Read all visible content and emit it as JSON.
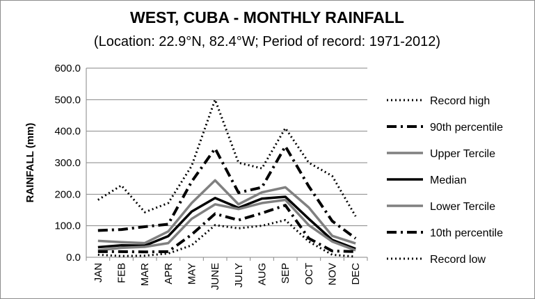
{
  "chart_data": {
    "type": "line",
    "title": "WEST, CUBA - MONTHLY RAINFALL",
    "subtitle": "(Location: 22.9°N, 82.4°W; Period of record: 1971-2012)",
    "xlabel": "",
    "ylabel": "RAINFALL (mm)",
    "ylim": [
      0,
      600
    ],
    "yticks": [
      "0.0",
      "100.0",
      "200.0",
      "300.0",
      "400.0",
      "500.0",
      "600.0"
    ],
    "categories": [
      "JAN",
      "FEB",
      "MAR",
      "APR",
      "MAY",
      "JUNE",
      "JULY",
      "AUG",
      "SEP",
      "OCT",
      "NOV",
      "DEC"
    ],
    "grid": true,
    "legend_position": "right",
    "series": [
      {
        "name": "Record high",
        "color": "#000000",
        "style": "dotted",
        "width": 3,
        "values": [
          182,
          228,
          143,
          172,
          290,
          500,
          300,
          282,
          410,
          300,
          258,
          130
        ]
      },
      {
        "name": "90th percentile",
        "color": "#000000",
        "style": "dashdot",
        "width": 4,
        "values": [
          85,
          88,
          97,
          105,
          240,
          345,
          205,
          222,
          352,
          225,
          115,
          60
        ]
      },
      {
        "name": "Upper Tercile",
        "color": "#808080",
        "style": "solid",
        "width": 3.5,
        "values": [
          52,
          48,
          45,
          82,
          172,
          244,
          168,
          206,
          222,
          158,
          68,
          44
        ]
      },
      {
        "name": "Median",
        "color": "#000000",
        "style": "solid",
        "width": 3.5,
        "values": [
          32,
          38,
          37,
          67,
          145,
          188,
          157,
          186,
          192,
          122,
          55,
          27
        ]
      },
      {
        "name": "Lower Tercile",
        "color": "#808080",
        "style": "solid",
        "width": 3.5,
        "values": [
          22,
          30,
          33,
          45,
          122,
          168,
          153,
          172,
          182,
          102,
          50,
          22
        ]
      },
      {
        "name": "10th percentile",
        "color": "#000000",
        "style": "dashdot",
        "width": 4,
        "values": [
          18,
          18,
          17,
          18,
          72,
          138,
          118,
          140,
          165,
          60,
          20,
          18
        ]
      },
      {
        "name": "Record low",
        "color": "#000000",
        "style": "dotted",
        "width": 3,
        "values": [
          8,
          4,
          5,
          12,
          38,
          102,
          92,
          100,
          118,
          50,
          8,
          2
        ]
      }
    ]
  }
}
